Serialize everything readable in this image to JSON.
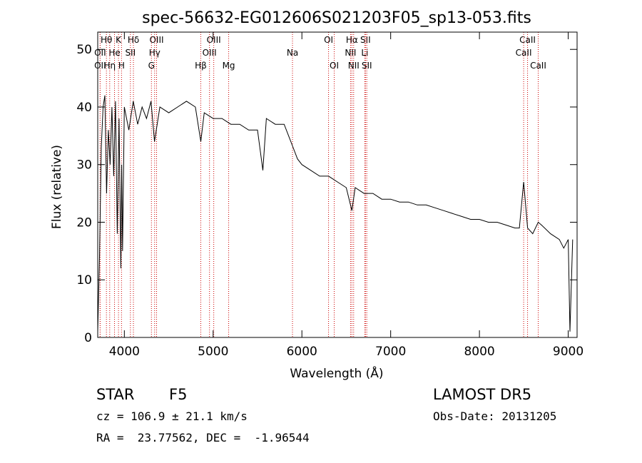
{
  "chart_data": {
    "type": "line",
    "title": "spec-56632-EG012606S021203F05_sp13-053.fits",
    "xlabel": "Wavelength (Å)",
    "ylabel": "Flux (relative)",
    "xlim": [
      3700,
      9100
    ],
    "ylim": [
      0,
      53
    ],
    "xticks": [
      4000,
      5000,
      6000,
      7000,
      8000,
      9000
    ],
    "yticks": [
      0,
      10,
      20,
      30,
      40,
      50
    ],
    "grid": false,
    "series": [
      {
        "x": [
          3700,
          3720,
          3740,
          3760,
          3780,
          3800,
          3820,
          3840,
          3860,
          3880,
          3900,
          3920,
          3940,
          3960,
          3970,
          3980,
          4000,
          4050,
          4100,
          4150,
          4200,
          4250,
          4300,
          4340,
          4400,
          4500,
          4600,
          4700,
          4800,
          4861,
          4900,
          5000,
          5100,
          5200,
          5300,
          5400,
          5500,
          5560,
          5600,
          5700,
          5800,
          5850,
          5900,
          5950,
          6000,
          6100,
          6200,
          6300,
          6400,
          6500,
          6563,
          6600,
          6700,
          6800,
          6900,
          7000,
          7100,
          7200,
          7300,
          7400,
          7500,
          7600,
          7700,
          7800,
          7900,
          8000,
          8100,
          8200,
          8300,
          8400,
          8450,
          8498,
          8542,
          8600,
          8662,
          8700,
          8800,
          8900,
          8950,
          9000,
          9020,
          9050
        ],
        "y": [
          1,
          14,
          33,
          40,
          42,
          25,
          36,
          30,
          40,
          28,
          41,
          18,
          38,
          12,
          30,
          15,
          40,
          36,
          41,
          37,
          40,
          38,
          41,
          34,
          40,
          39,
          40,
          41,
          40,
          34,
          39,
          38,
          38,
          37,
          37,
          36,
          36,
          29,
          38,
          37,
          37,
          35,
          33,
          31,
          30,
          29,
          28,
          28,
          27,
          26,
          22,
          26,
          25,
          25,
          24,
          24,
          23.5,
          23.5,
          23,
          23,
          22.5,
          22,
          21.5,
          21,
          20.5,
          20.5,
          20,
          20,
          19.5,
          19,
          19,
          27,
          19,
          18,
          20,
          19.5,
          18,
          17,
          15.5,
          17,
          1,
          17
        ]
      }
    ],
    "annotations": [
      {
        "label": "Hθ",
        "x": 3798,
        "row": 1
      },
      {
        "label": "K",
        "x": 3934,
        "row": 1
      },
      {
        "label": "Hδ",
        "x": 4102,
        "row": 1
      },
      {
        "label": "OII",
        "x": 3727,
        "row": 2
      },
      {
        "label": "He",
        "x": 3889,
        "row": 2
      },
      {
        "label": "SII",
        "x": 4068,
        "row": 2
      },
      {
        "label": "OII",
        "x": 3727,
        "row": 3
      },
      {
        "label": "Hη",
        "x": 3835,
        "row": 3
      },
      {
        "label": "H",
        "x": 3968,
        "row": 3
      },
      {
        "label": "OIII",
        "x": 4363,
        "row": 1
      },
      {
        "label": "Hγ",
        "x": 4341,
        "row": 2
      },
      {
        "label": "G",
        "x": 4305,
        "row": 3
      },
      {
        "label": "Hβ",
        "x": 4861,
        "row": 3
      },
      {
        "label": "OIII",
        "x": 5007,
        "row": 1
      },
      {
        "label": "OIII",
        "x": 4959,
        "row": 2
      },
      {
        "label": "Mg",
        "x": 5175,
        "row": 3
      },
      {
        "label": "Na",
        "x": 5894,
        "row": 2
      },
      {
        "label": "OI",
        "x": 6300,
        "row": 1
      },
      {
        "label": "OI",
        "x": 6364,
        "row": 3
      },
      {
        "label": "Hα",
        "x": 6563,
        "row": 1
      },
      {
        "label": "SII",
        "x": 6716,
        "row": 1
      },
      {
        "label": "NII",
        "x": 6548,
        "row": 2
      },
      {
        "label": "Li",
        "x": 6708,
        "row": 2
      },
      {
        "label": "NII",
        "x": 6583,
        "row": 3
      },
      {
        "label": "SII",
        "x": 6731,
        "row": 3
      },
      {
        "label": "CaII",
        "x": 8542,
        "row": 1
      },
      {
        "label": "CaII",
        "x": 8498,
        "row": 2
      },
      {
        "label": "CaII",
        "x": 8662,
        "row": 3
      }
    ]
  },
  "info": {
    "object_class": "STAR",
    "subclass": "F5",
    "survey": "LAMOST DR5",
    "redshift": "cz = 106.9 ± 21.1 km/s",
    "obs_date": "Obs-Date: 20131205",
    "coordinates": "RA =  23.77562, DEC =  -1.96544"
  }
}
